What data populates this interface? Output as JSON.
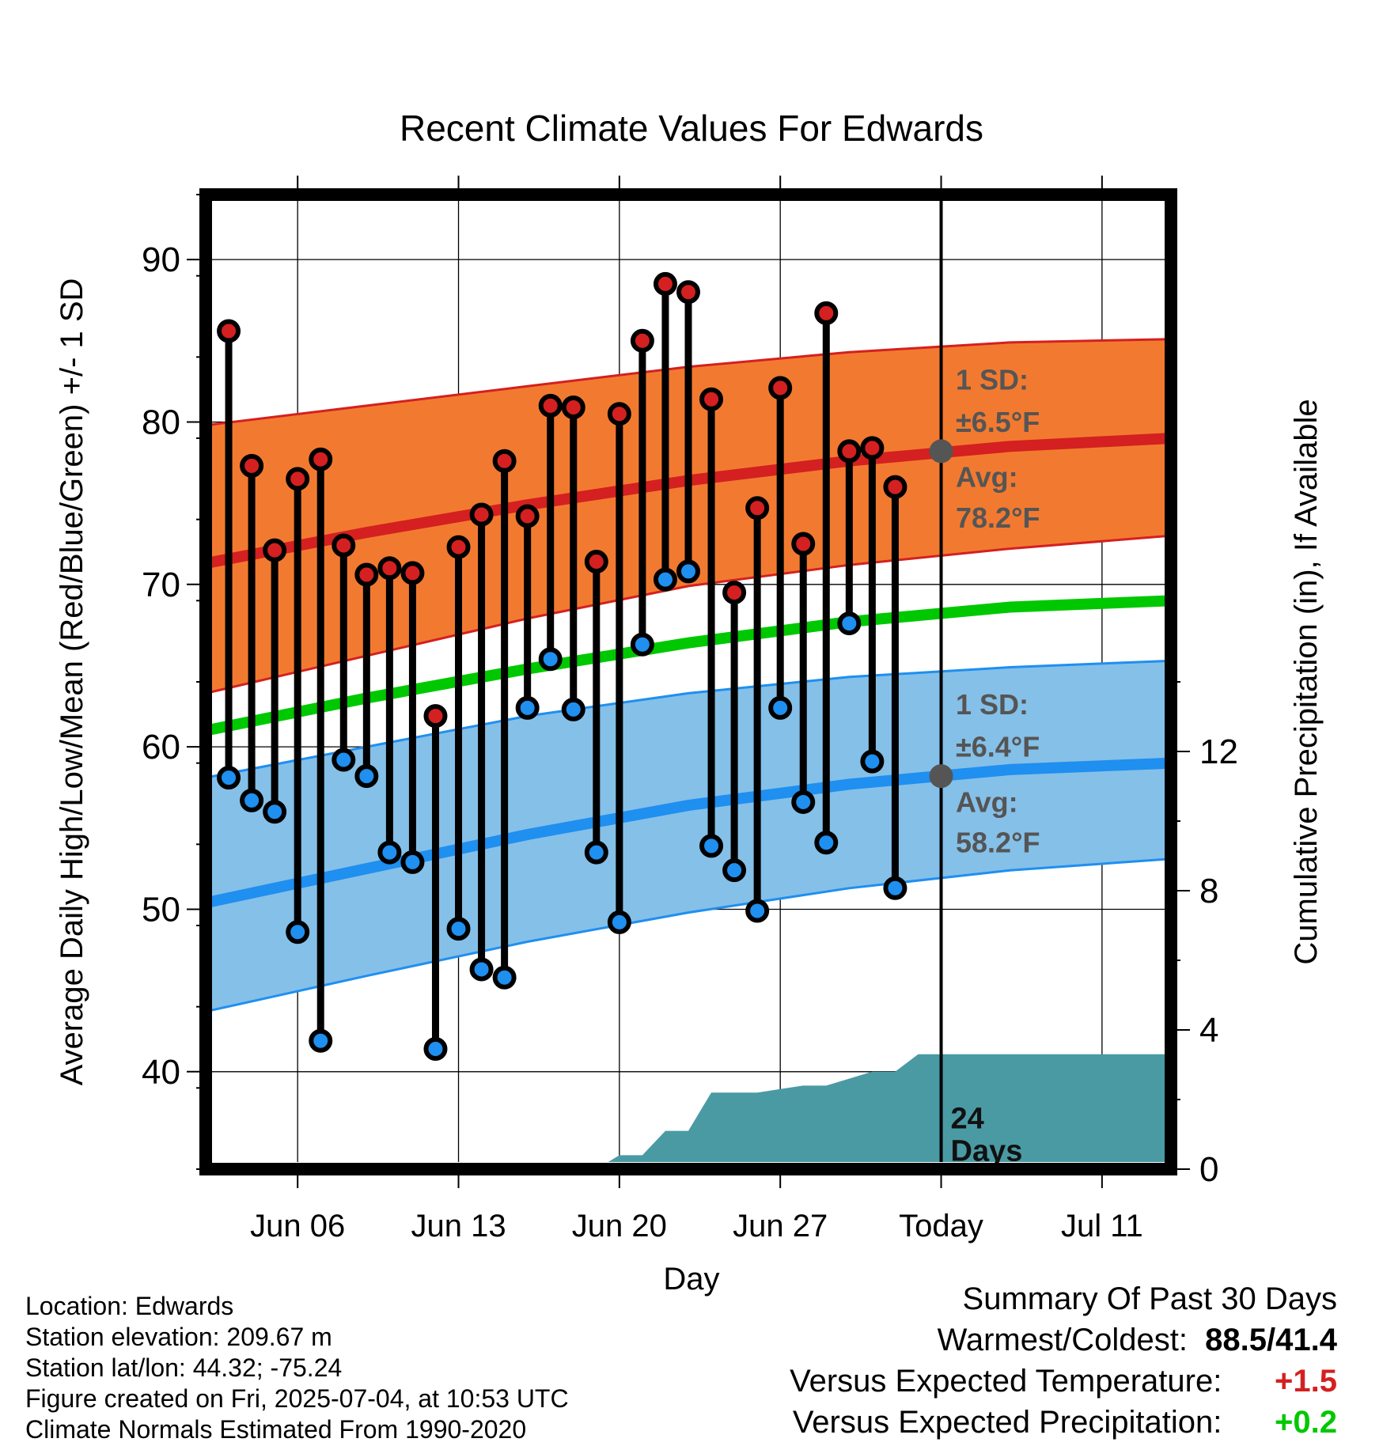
{
  "chart_data": {
    "type": "line",
    "title": "Recent Climate Values For Edwards",
    "xlabel": "Day",
    "ylabel": "Average Daily High/Low/Mean (Red/Blue/Green) +/- 1 SD",
    "y2label": "Cumulative Precipitation (in), If Available",
    "ylim": [
      34,
      94
    ],
    "y2lim": [
      0,
      28
    ],
    "xlim": [
      "2025-06-02",
      "2025-07-14"
    ],
    "x_ticks": [
      {
        "date": "2025-06-06",
        "label": "Jun 06"
      },
      {
        "date": "2025-06-13",
        "label": "Jun 13"
      },
      {
        "date": "2025-06-20",
        "label": "Jun 20"
      },
      {
        "date": "2025-06-27",
        "label": "Jun 27"
      },
      {
        "date": "2025-07-04",
        "label": "Today"
      },
      {
        "date": "2025-07-11",
        "label": "Jul 11"
      }
    ],
    "y_ticks": [
      40,
      50,
      60,
      70,
      80,
      90
    ],
    "y2_ticks": [
      0,
      4,
      8,
      12
    ],
    "grid": true,
    "colors": {
      "high_band": "#f27a30",
      "high_band_edge": "#d42020",
      "high_avg": "#d42020",
      "low_band": "#85c0e8",
      "low_band_edge": "#1f8ff0",
      "low_avg": "#1f8ff0",
      "mean_line": "#00c800",
      "precip_fill": "#4a9aa4",
      "high_marker": "#d42020",
      "low_marker": "#1f8ff0",
      "today_marker": "#555555",
      "annotation": "#555555",
      "positive_temp": "#d42020",
      "positive_precip": "#00c800"
    },
    "normals": {
      "dates": [
        "2025-06-02",
        "2025-06-09",
        "2025-06-16",
        "2025-06-23",
        "2025-06-30",
        "2025-07-07",
        "2025-07-14"
      ],
      "high_avg": [
        71.3,
        73.2,
        74.9,
        76.4,
        77.6,
        78.5,
        79.0
      ],
      "high_plus_sd": [
        79.8,
        81.0,
        82.2,
        83.4,
        84.3,
        84.9,
        85.1
      ],
      "high_minus_sd": [
        63.3,
        65.6,
        67.9,
        69.9,
        71.2,
        72.2,
        73.0
      ],
      "mean_avg": [
        61.0,
        63.0,
        64.8,
        66.4,
        67.7,
        68.6,
        69.0
      ],
      "low_avg": [
        50.4,
        52.5,
        54.6,
        56.4,
        57.7,
        58.6,
        59.0
      ],
      "low_plus_sd": [
        58.1,
        60.0,
        61.9,
        63.3,
        64.3,
        64.9,
        65.3
      ],
      "low_minus_sd": [
        43.7,
        45.9,
        48.0,
        49.8,
        51.3,
        52.4,
        53.1
      ]
    },
    "series": [
      {
        "name": "High",
        "dates": [
          "2025-06-03",
          "2025-06-04",
          "2025-06-05",
          "2025-06-06",
          "2025-06-07",
          "2025-06-08",
          "2025-06-09",
          "2025-06-10",
          "2025-06-11",
          "2025-06-12",
          "2025-06-13",
          "2025-06-14",
          "2025-06-15",
          "2025-06-16",
          "2025-06-17",
          "2025-06-18",
          "2025-06-19",
          "2025-06-20",
          "2025-06-21",
          "2025-06-22",
          "2025-06-23",
          "2025-06-24",
          "2025-06-25",
          "2025-06-26",
          "2025-06-27",
          "2025-06-28",
          "2025-06-29",
          "2025-06-30",
          "2025-07-01",
          "2025-07-02",
          "2025-07-03"
        ],
        "values": [
          85.6,
          77.3,
          72.1,
          76.5,
          77.7,
          72.4,
          70.6,
          71.0,
          70.7,
          61.9,
          72.3,
          74.3,
          77.6,
          74.2,
          81.0,
          80.9,
          71.4,
          80.5,
          85.0,
          88.5,
          88.0,
          81.4,
          69.5,
          74.7,
          82.1,
          72.5,
          86.7,
          78.2,
          78.4,
          76.0,
          null
        ]
      },
      {
        "name": "Low",
        "dates": [
          "2025-06-03",
          "2025-06-04",
          "2025-06-05",
          "2025-06-06",
          "2025-06-07",
          "2025-06-08",
          "2025-06-09",
          "2025-06-10",
          "2025-06-11",
          "2025-06-12",
          "2025-06-13",
          "2025-06-14",
          "2025-06-15",
          "2025-06-16",
          "2025-06-17",
          "2025-06-18",
          "2025-06-19",
          "2025-06-20",
          "2025-06-21",
          "2025-06-22",
          "2025-06-23",
          "2025-06-24",
          "2025-06-25",
          "2025-06-26",
          "2025-06-27",
          "2025-06-28",
          "2025-06-29",
          "2025-06-30",
          "2025-07-01",
          "2025-07-02",
          "2025-07-03"
        ],
        "values": [
          58.1,
          56.7,
          56.0,
          48.6,
          41.9,
          59.2,
          58.2,
          53.5,
          52.9,
          41.4,
          48.8,
          46.3,
          45.8,
          62.4,
          65.4,
          62.3,
          53.5,
          49.2,
          66.3,
          70.3,
          70.8,
          53.9,
          52.4,
          49.9,
          62.4,
          56.6,
          54.1,
          67.6,
          59.1,
          51.3,
          null
        ]
      },
      {
        "name": "Cumulative Precipitation",
        "dates": [
          "2025-06-19",
          "2025-06-20",
          "2025-06-21",
          "2025-06-22",
          "2025-06-23",
          "2025-06-24",
          "2025-06-25",
          "2025-06-26",
          "2025-06-27",
          "2025-06-28",
          "2025-06-29",
          "2025-06-30",
          "2025-07-01",
          "2025-07-02",
          "2025-07-03",
          "2025-07-04",
          "2025-07-14"
        ],
        "values": [
          0.0,
          0.4,
          0.4,
          1.1,
          1.1,
          2.2,
          2.2,
          2.2,
          2.3,
          2.4,
          2.4,
          2.6,
          2.8,
          2.8,
          3.3,
          3.3,
          3.3
        ]
      }
    ],
    "today_markers": [
      {
        "date": "2025-07-04",
        "value": 78.2
      },
      {
        "date": "2025-07-04",
        "value": 58.2
      }
    ],
    "annotations": {
      "high_sd_label": "1 SD:",
      "high_sd_value": "±6.5°F",
      "high_avg_label": "Avg:",
      "high_avg_value": "78.2°F",
      "low_sd_label": "1 SD:",
      "low_sd_value": "±6.4°F",
      "low_avg_label": "Avg:",
      "low_avg_value": "58.2°F",
      "days_number": "24",
      "days_word": "Days"
    }
  },
  "metadata": {
    "location": "Location: Edwards",
    "elevation": "Station elevation: 209.67 m",
    "latlon": "Station lat/lon: 44.32; -75.24",
    "created": "Figure created on Fri, 2025-07-04, at 10:53 UTC",
    "normals": "Climate Normals Estimated From 1990-2020"
  },
  "summary": {
    "title": "Summary Of Past 30 Days",
    "warm_cold_label": "Warmest/Coldest:",
    "warm_cold_value": "88.5/41.4",
    "temp_label": "Versus Expected Temperature:",
    "temp_value": "+1.5",
    "precip_label": "Versus Expected Precipitation:",
    "precip_value": "+0.2"
  }
}
